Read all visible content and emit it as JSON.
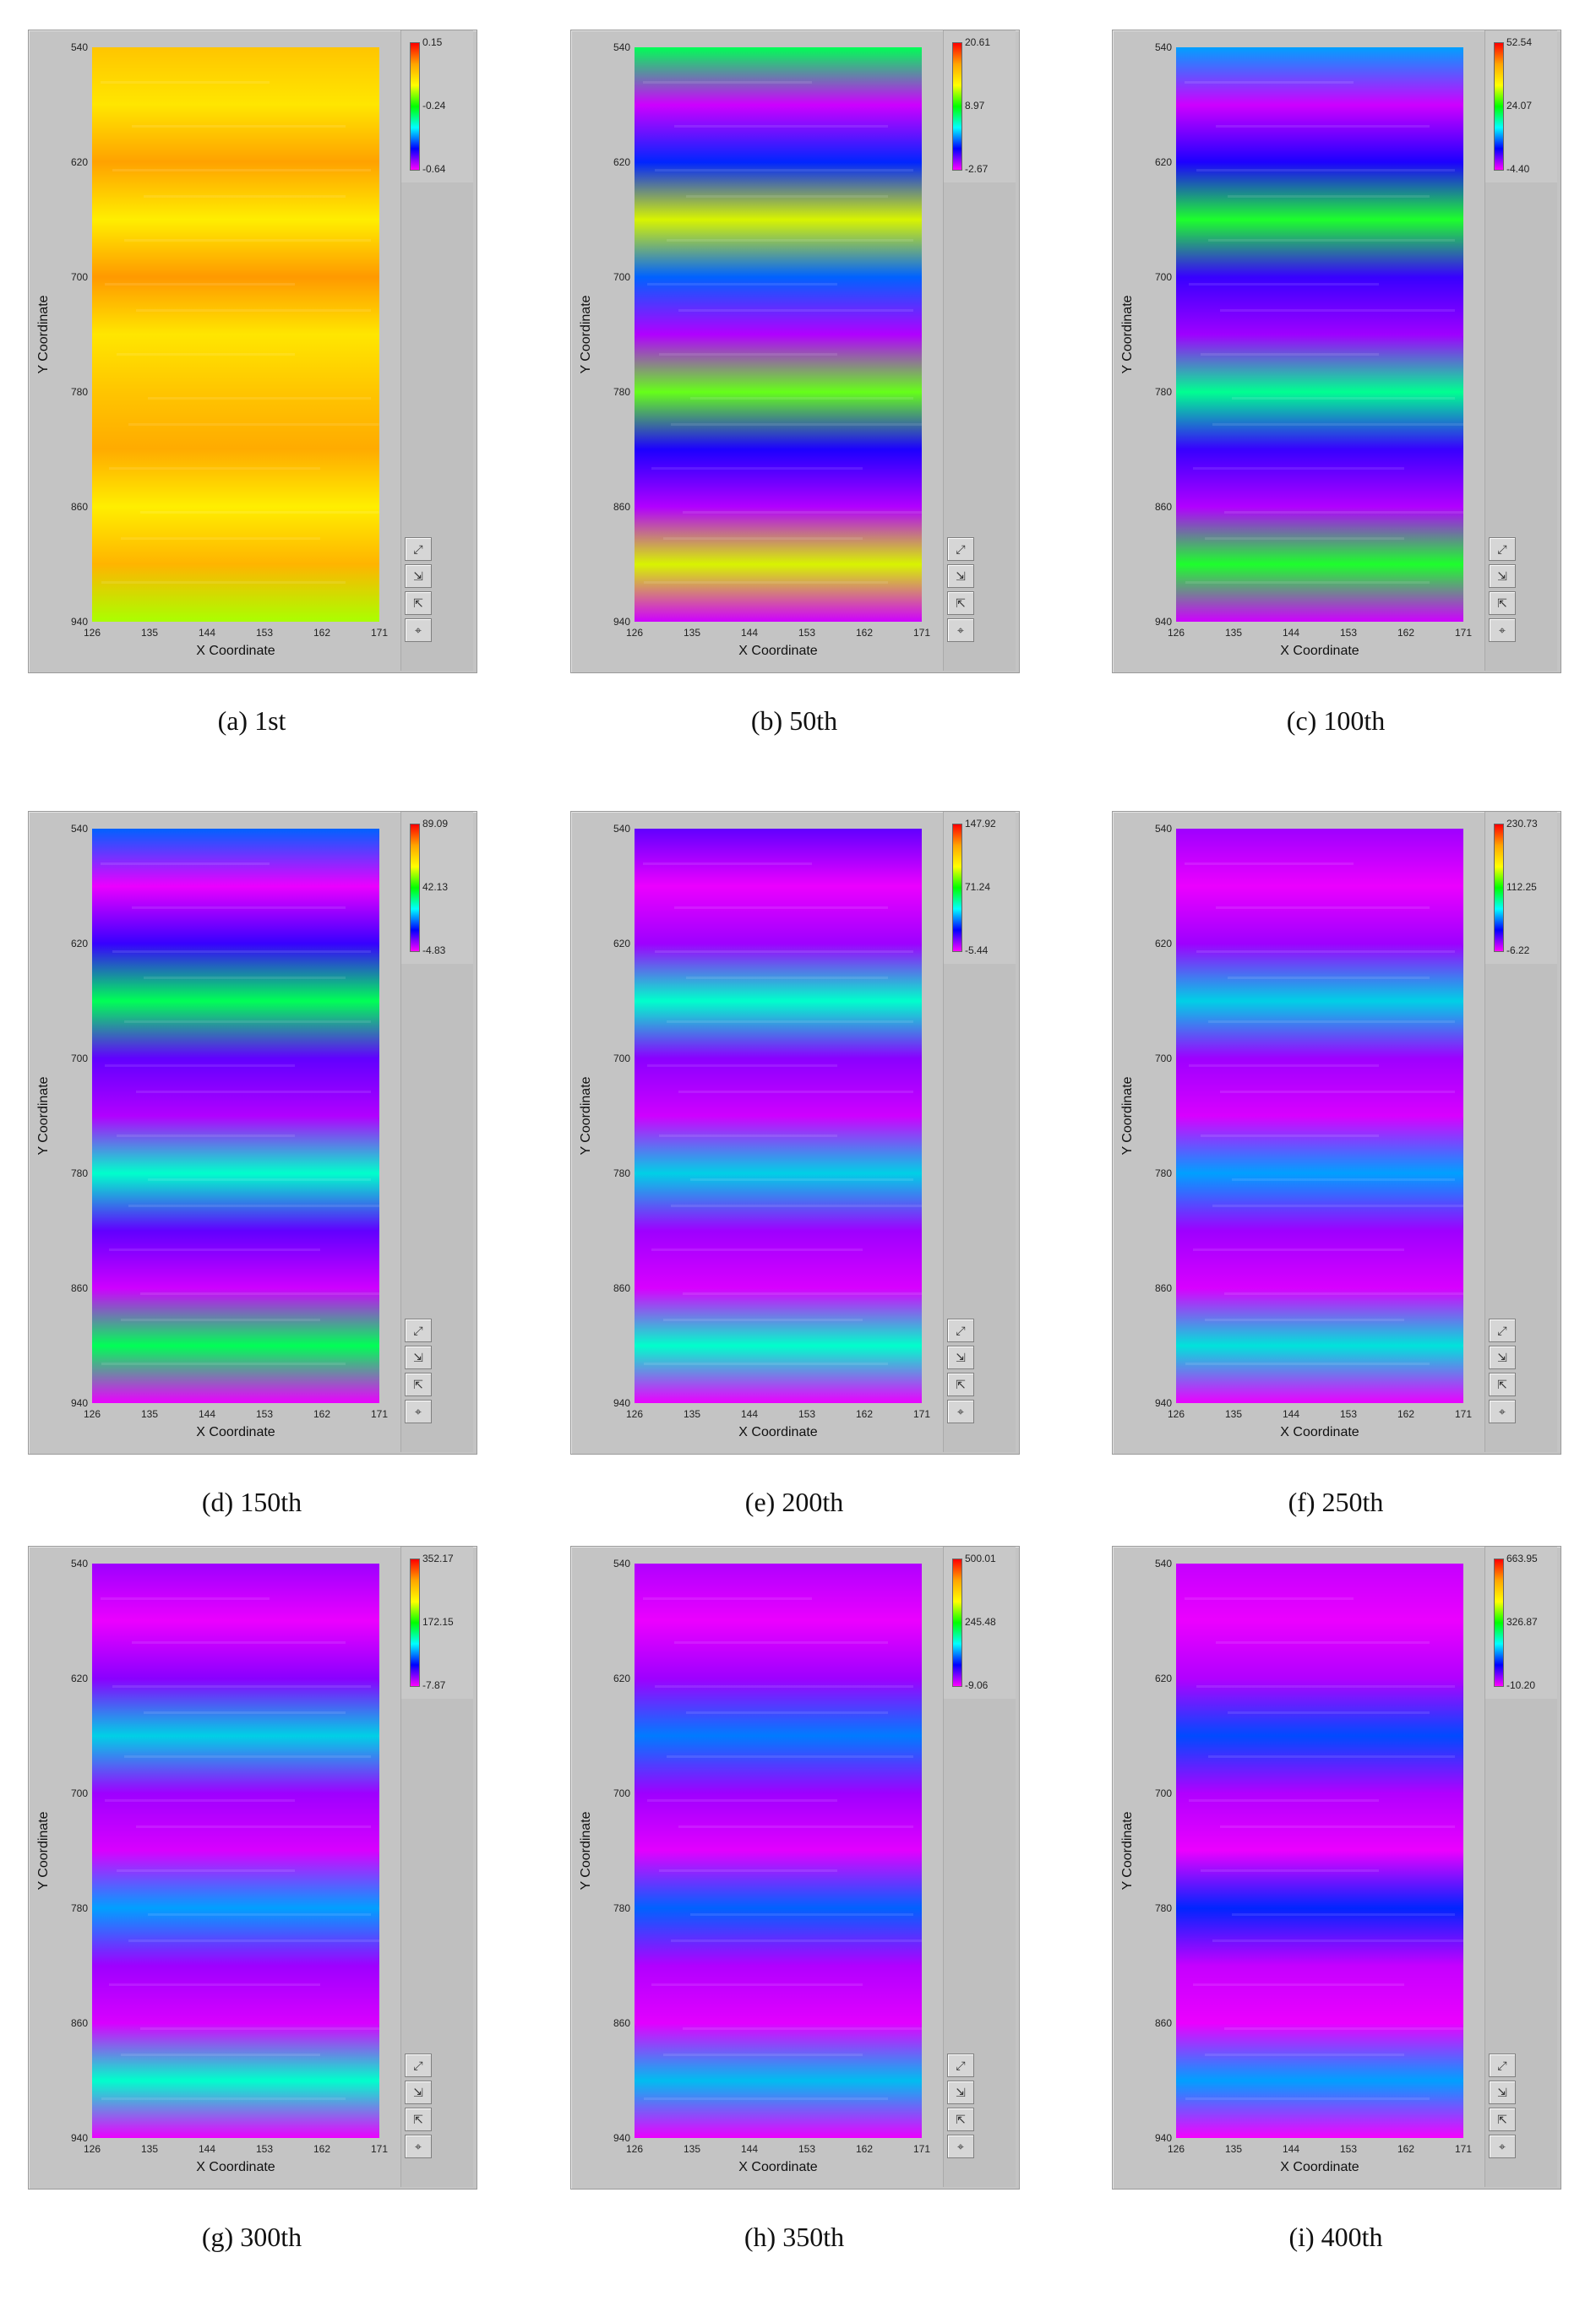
{
  "chart_data": [
    {
      "type": "heatmap",
      "caption": "(a) 1st",
      "xlabel": "X Coordinate",
      "ylabel": "Y Coordinate",
      "x_ticks": [
        "126",
        "135",
        "144",
        "153",
        "162",
        "171"
      ],
      "y_ticks": [
        "540",
        "620",
        "700",
        "780",
        "860",
        "940"
      ],
      "colorbar": {
        "max_label": "0.15",
        "mid_label": "-0.24",
        "min_label": "-0.64"
      },
      "pattern": [
        0.8,
        0.72,
        0.88,
        0.7,
        0.9,
        0.72,
        0.8,
        0.86,
        0.7,
        0.84,
        0.45
      ],
      "colors": "warm"
    },
    {
      "type": "heatmap",
      "caption": "(b) 50th",
      "xlabel": "X Coordinate",
      "ylabel": "Y Coordinate",
      "x_ticks": [
        "126",
        "135",
        "144",
        "153",
        "162",
        "171"
      ],
      "y_ticks": [
        "540",
        "620",
        "700",
        "780",
        "860",
        "940"
      ],
      "colorbar": {
        "max_label": "20.61",
        "mid_label": "8.97",
        "min_label": "-2.67"
      },
      "pattern": [
        0.55,
        0.05,
        0.25,
        0.75,
        0.3,
        0.08,
        0.65,
        0.2,
        0.08,
        0.75,
        0.05
      ],
      "colors": "full"
    },
    {
      "type": "heatmap",
      "caption": "(c) 100th",
      "xlabel": "X Coordinate",
      "ylabel": "Y Coordinate",
      "x_ticks": [
        "126",
        "135",
        "144",
        "153",
        "162",
        "171"
      ],
      "y_ticks": [
        "540",
        "620",
        "700",
        "780",
        "860",
        "940"
      ],
      "colorbar": {
        "max_label": "52.54",
        "mid_label": "24.07",
        "min_label": "-4.40"
      },
      "pattern": [
        0.35,
        0.05,
        0.2,
        0.6,
        0.18,
        0.1,
        0.5,
        0.18,
        0.08,
        0.6,
        0.05
      ],
      "colors": "full"
    },
    {
      "type": "heatmap",
      "caption": "(d) 150th",
      "xlabel": "X Coordinate",
      "ylabel": "Y Coordinate",
      "x_ticks": [
        "126",
        "135",
        "144",
        "153",
        "162",
        "171"
      ],
      "y_ticks": [
        "540",
        "620",
        "700",
        "780",
        "860",
        "940"
      ],
      "colorbar": {
        "max_label": "89.09",
        "mid_label": "42.13",
        "min_label": "-4.83"
      },
      "pattern": [
        0.3,
        0.02,
        0.18,
        0.55,
        0.15,
        0.08,
        0.45,
        0.15,
        0.05,
        0.55,
        0.02
      ],
      "colors": "full"
    },
    {
      "type": "heatmap",
      "caption": "(e) 200th",
      "xlabel": "X Coordinate",
      "ylabel": "Y Coordinate",
      "x_ticks": [
        "126",
        "135",
        "144",
        "153",
        "162",
        "171"
      ],
      "y_ticks": [
        "540",
        "620",
        "700",
        "780",
        "860",
        "940"
      ],
      "colorbar": {
        "max_label": "147.92",
        "mid_label": "71.24",
        "min_label": "-5.44"
      },
      "pattern": [
        0.15,
        0.02,
        0.1,
        0.45,
        0.12,
        0.05,
        0.4,
        0.1,
        0.04,
        0.45,
        0.02
      ],
      "colors": "full"
    },
    {
      "type": "heatmap",
      "caption": "(f) 250th",
      "xlabel": "X Coordinate",
      "ylabel": "Y Coordinate",
      "x_ticks": [
        "126",
        "135",
        "144",
        "153",
        "162",
        "171"
      ],
      "y_ticks": [
        "540",
        "620",
        "700",
        "780",
        "860",
        "940"
      ],
      "colorbar": {
        "max_label": "230.73",
        "mid_label": "112.25",
        "min_label": "-6.22"
      },
      "pattern": [
        0.1,
        0.02,
        0.1,
        0.4,
        0.1,
        0.04,
        0.35,
        0.1,
        0.04,
        0.42,
        0.02
      ],
      "colors": "full"
    },
    {
      "type": "heatmap",
      "caption": "(g) 300th",
      "xlabel": "X Coordinate",
      "ylabel": "Y Coordinate",
      "x_ticks": [
        "126",
        "135",
        "144",
        "153",
        "162",
        "171"
      ],
      "y_ticks": [
        "540",
        "620",
        "700",
        "780",
        "860",
        "940"
      ],
      "colorbar": {
        "max_label": "352.17",
        "mid_label": "172.15",
        "min_label": "-7.87"
      },
      "pattern": [
        0.1,
        0.02,
        0.12,
        0.4,
        0.1,
        0.04,
        0.35,
        0.1,
        0.04,
        0.45,
        0.02
      ],
      "colors": "full"
    },
    {
      "type": "heatmap",
      "caption": "(h) 350th",
      "xlabel": "X Coordinate",
      "ylabel": "Y Coordinate",
      "x_ticks": [
        "126",
        "135",
        "144",
        "153",
        "162",
        "171"
      ],
      "y_ticks": [
        "540",
        "620",
        "700",
        "780",
        "860",
        "940"
      ],
      "colorbar": {
        "max_label": "500.01",
        "mid_label": "245.48",
        "min_label": "-9.06"
      },
      "pattern": [
        0.08,
        0.02,
        0.1,
        0.32,
        0.1,
        0.03,
        0.3,
        0.08,
        0.03,
        0.38,
        0.02
      ],
      "colors": "full"
    },
    {
      "type": "heatmap",
      "caption": "(i) 400th",
      "xlabel": "X Coordinate",
      "ylabel": "Y Coordinate",
      "x_ticks": [
        "126",
        "135",
        "144",
        "153",
        "162",
        "171"
      ],
      "y_ticks": [
        "540",
        "620",
        "700",
        "780",
        "860",
        "940"
      ],
      "colorbar": {
        "max_label": "663.95",
        "mid_label": "326.87",
        "min_label": "-10.20"
      },
      "pattern": [
        0.06,
        0.02,
        0.08,
        0.28,
        0.08,
        0.02,
        0.25,
        0.06,
        0.02,
        0.35,
        0.01
      ],
      "colors": "full"
    }
  ]
}
